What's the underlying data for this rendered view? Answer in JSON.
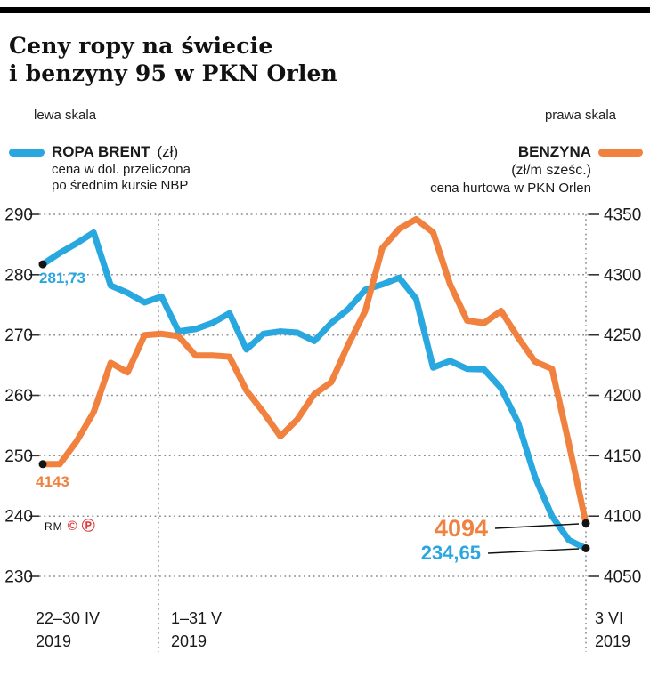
{
  "page": {
    "background": "#ffffff",
    "top_rule_color": "#000000"
  },
  "header": {
    "title_line1": "Ceny ropy na świecie",
    "title_line2": "i benzyny 95 w PKN Orlen",
    "left_scale_note": "lewa skala",
    "right_scale_note": "prawa skala"
  },
  "legend": {
    "brent": {
      "name": "ROPA BRENT",
      "unit": "(zł)",
      "desc_line1": "cena w dol. przeliczona",
      "desc_line2": "po średnim kursie NBP",
      "color": "#29A7DF"
    },
    "benzyna": {
      "name": "BENZYNA",
      "unit": "(zł/m sześc.)",
      "desc": "cena hurtowa w PKN Orlen",
      "color": "#F0813F"
    }
  },
  "credit": {
    "author": "RM",
    "copyright_symbol": "©",
    "press_symbol": "Ⓟ",
    "color": "#DD3A3C"
  },
  "chart_data": {
    "type": "line",
    "title": "Ceny ropy na świecie i benzyny 95 w PKN Orlen",
    "grid": "dotted",
    "legend_position": "top",
    "left_axis": {
      "name": "ROPA BRENT (zł) — cena w dol. przeliczona po średnim kursie NBP",
      "range": [
        230,
        290
      ],
      "ticks": [
        290,
        280,
        270,
        260,
        250,
        240,
        230
      ]
    },
    "right_axis": {
      "name": "BENZYNA (zł/m sześc.) — cena hurtowa w PKN Orlen",
      "range": [
        4050,
        4350
      ],
      "ticks": [
        4350,
        4300,
        4250,
        4200,
        4150,
        4100,
        4050
      ]
    },
    "x_sections": [
      {
        "line1": "22–30 IV",
        "line2": "2019"
      },
      {
        "line1": "1–31 V",
        "line2": "2019"
      },
      {
        "line1": "3 VI",
        "line2": "2019"
      }
    ],
    "series": [
      {
        "id": "brent",
        "name": "ROPA BRENT (zł)",
        "axis": "left",
        "color": "#29A7DF",
        "values": [
          281.73,
          283.6,
          285.2,
          287.0,
          278.2,
          277.0,
          275.4,
          276.4,
          270.6,
          271.0,
          272.0,
          273.6,
          267.6,
          270.2,
          270.6,
          270.4,
          269.0,
          272.0,
          274.3,
          277.5,
          278.4,
          279.5,
          276.0,
          264.6,
          265.7,
          264.4,
          264.3,
          261.2,
          255.5,
          246.5,
          240.0,
          236.0,
          234.65
        ]
      },
      {
        "id": "benzyna",
        "name": "BENZYNA (zł/m sześc.)",
        "axis": "right",
        "color": "#F0813F",
        "values": [
          4143,
          4143,
          4162,
          4186,
          4227,
          4219,
          4250,
          4251,
          4249,
          4233,
          4233,
          4232,
          4204,
          4186,
          4166,
          4180,
          4201,
          4211,
          4242,
          4270,
          4322,
          4338,
          4346,
          4335,
          4292,
          4262,
          4260,
          4270,
          4248,
          4228,
          4222,
          4160,
          4094
        ]
      }
    ],
    "annotations": [
      {
        "id": "brent-start",
        "text": "281,73",
        "value": 281.73,
        "color": "#29A7DF"
      },
      {
        "id": "benzyna-start",
        "text": "4143",
        "value": 4143,
        "color": "#F0813F"
      },
      {
        "id": "benzyna-end",
        "text": "4094",
        "value": 4094,
        "color": "#F0813F"
      },
      {
        "id": "brent-end",
        "text": "234,65",
        "value": 234.65,
        "color": "#29A7DF"
      }
    ]
  }
}
